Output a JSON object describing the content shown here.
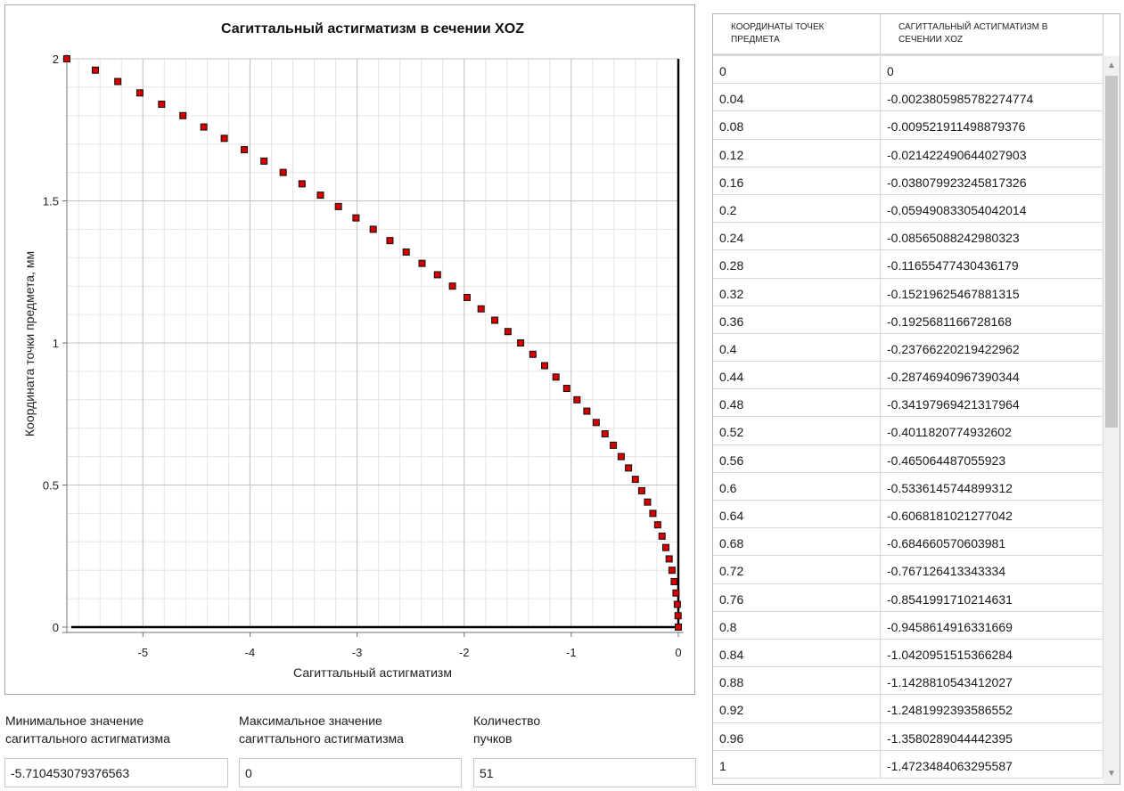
{
  "chart_data": {
    "type": "scatter",
    "title": "Сагиттальный астигматизм в сечении XOZ",
    "xlabel": "Сагиттальный астигматизм",
    "ylabel": "Координата точки предмета, мм",
    "xlim": [
      -5.71,
      0
    ],
    "ylim": [
      0,
      2
    ],
    "xticks": [
      -5,
      -4,
      -3,
      -2,
      -1,
      0
    ],
    "yticks": [
      0,
      0.5,
      1,
      1.5,
      2
    ],
    "xtick_labels": [
      "-5",
      "-4",
      "-3",
      "-2",
      "-1",
      "0"
    ],
    "ytick_labels": [
      "0",
      "0.5",
      "1",
      "1.5",
      "2"
    ],
    "grid": true,
    "marker": "square",
    "marker_color": "#d40000",
    "series": [
      {
        "x": [
          0,
          -0.0024,
          -0.0095,
          -0.0214,
          -0.0381,
          -0.0595,
          -0.0857,
          -0.1166,
          -0.1522,
          -0.1926,
          -0.2377,
          -0.2875,
          -0.342,
          -0.4012,
          -0.4651,
          -0.5336,
          -0.6068,
          -0.6847,
          -0.7671,
          -0.8542,
          -0.9459,
          -1.0421,
          -1.1429,
          -1.2482,
          -1.358,
          -1.4723,
          -1.591,
          -1.714,
          -1.842,
          -1.973,
          -2.109,
          -2.249,
          -2.393,
          -2.541,
          -2.693,
          -2.849,
          -3.01,
          -3.174,
          -3.342,
          -3.514,
          -3.69,
          -3.869,
          -4.053,
          -4.24,
          -4.431,
          -4.626,
          -4.825,
          -5.028,
          -5.234,
          -5.444,
          -5.7105
        ],
        "y": [
          0,
          0.04,
          0.08,
          0.12,
          0.16,
          0.2,
          0.24,
          0.28,
          0.32,
          0.36,
          0.4,
          0.44,
          0.48,
          0.52,
          0.56,
          0.6,
          0.64,
          0.68,
          0.72,
          0.76,
          0.8,
          0.84,
          0.88,
          0.92,
          0.96,
          1,
          1.04,
          1.08,
          1.12,
          1.16,
          1.2,
          1.24,
          1.28,
          1.32,
          1.36,
          1.4,
          1.44,
          1.48,
          1.52,
          1.56,
          1.6,
          1.64,
          1.68,
          1.72,
          1.76,
          1.8,
          1.84,
          1.88,
          1.92,
          1.96,
          2
        ]
      }
    ]
  },
  "stats": {
    "min_label_line1": "Минимальное значение",
    "min_label_line2": "сагиттального астигматизма",
    "min_value": "-5.710453079376563",
    "max_label_line1": "Максимальное значение",
    "max_label_line2": "сагиттального астигматизма",
    "max_value": "0",
    "count_label_line1": "Количество",
    "count_label_line2": "пучков",
    "count_value": "51"
  },
  "grid": {
    "col1_header_line1": "КООРДИНАТЫ ТОЧЕК",
    "col1_header_line2": "ПРЕДМЕТА",
    "col2_header_line1": "САГИТТАЛЬНЫЙ АСТИГМАТИЗМ В",
    "col2_header_line2": "СЕЧЕНИИ XOZ",
    "rows": [
      [
        "0",
        "0"
      ],
      [
        "0.04",
        "-0.0023805985782274774"
      ],
      [
        "0.08",
        "-0.009521911498879376"
      ],
      [
        "0.12",
        "-0.021422490644027903"
      ],
      [
        "0.16",
        "-0.038079923245817326"
      ],
      [
        "0.2",
        "-0.059490833054042014"
      ],
      [
        "0.24",
        "-0.08565088242980323"
      ],
      [
        "0.28",
        "-0.11655477430436179"
      ],
      [
        "0.32",
        "-0.15219625467881315"
      ],
      [
        "0.36",
        "-0.1925681166728168"
      ],
      [
        "0.4",
        "-0.23766220219422962"
      ],
      [
        "0.44",
        "-0.28746940967390344"
      ],
      [
        "0.48",
        "-0.3419796942131 7964"
      ],
      [
        "0.52",
        "-0.4011820774932602"
      ],
      [
        "0.56",
        "-0.4650644870559 23"
      ],
      [
        "0.6",
        "-0.5336145744899312"
      ],
      [
        "0.64",
        "-0.6068181021277042"
      ],
      [
        "0.68",
        "-0.684660570603981"
      ],
      [
        "0.72",
        "-0.767126413343334"
      ],
      [
        "0.76",
        "-0.8541991710214631"
      ],
      [
        "0.8",
        "-0.9458614916331669"
      ],
      [
        "0.84",
        "-1.0420951515366284"
      ],
      [
        "0.88",
        "-1.1428810543412027"
      ],
      [
        "0.92",
        "-1.2481992393586552"
      ],
      [
        "0.96",
        "-1.3580289044442395"
      ],
      [
        "1",
        "-1.4723484063295587"
      ]
    ]
  },
  "icons": {
    "scroll_up": "scroll-up-arrow-icon",
    "scroll_down": "scroll-down-arrow-icon"
  },
  "colors": {
    "marker_fill": "#d40000",
    "grid_line": "#d4d4d4",
    "axis_line": "#000000"
  }
}
